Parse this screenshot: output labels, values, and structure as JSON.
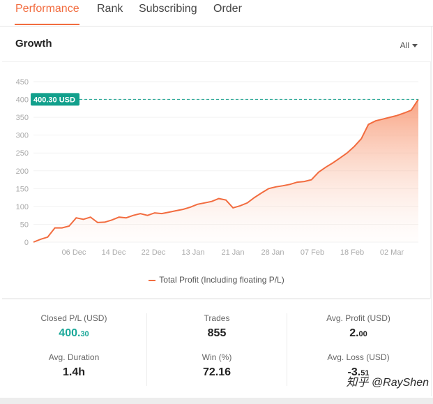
{
  "tabs": [
    {
      "label": "Performance",
      "active": true
    },
    {
      "label": "Rank",
      "active": false
    },
    {
      "label": "Subscribing",
      "active": false
    },
    {
      "label": "Order",
      "active": false
    }
  ],
  "section": {
    "title": "Growth",
    "range": "All"
  },
  "chart_data": {
    "type": "area",
    "current_label": "400.30 USD",
    "ylim": [
      0,
      450
    ],
    "yticks": [
      0,
      50,
      100,
      150,
      200,
      250,
      300,
      350,
      400,
      450
    ],
    "xticks": [
      "06 Dec",
      "14 Dec",
      "22 Dec",
      "13 Jan",
      "21 Jan",
      "28 Jan",
      "07 Feb",
      "18 Feb",
      "02 Mar"
    ],
    "series": [
      {
        "name": "Total Profit (Including floating P/L)",
        "values": [
          0,
          8,
          14,
          40,
          40,
          45,
          68,
          64,
          70,
          55,
          56,
          62,
          70,
          68,
          75,
          80,
          75,
          82,
          80,
          84,
          88,
          92,
          98,
          106,
          110,
          114,
          122,
          118,
          96,
          102,
          110,
          125,
          138,
          150,
          155,
          158,
          162,
          168,
          170,
          175,
          196,
          210,
          222,
          236,
          250,
          268,
          290,
          330,
          340,
          345,
          350,
          355,
          362,
          370,
          400.3
        ]
      }
    ],
    "colors": {
      "line": "#f26c3f",
      "area_top": "#f7926c",
      "marker_bg": "#12a08c"
    }
  },
  "stats": {
    "closed_pl": {
      "label": "Closed P/L (USD)",
      "int": "400.",
      "dec": "30"
    },
    "trades": {
      "label": "Trades",
      "value": "855"
    },
    "avg_profit": {
      "label": "Avg. Profit (USD)",
      "int": "2.",
      "dec": "00"
    },
    "avg_duration": {
      "label": "Avg. Duration",
      "value": "1.4h"
    },
    "win": {
      "label": "Win (%)",
      "value": "72.16"
    },
    "avg_loss": {
      "label": "Avg. Loss (USD)",
      "int": "-3.",
      "dec": "51"
    }
  },
  "watermark": "知乎 @RayShen"
}
